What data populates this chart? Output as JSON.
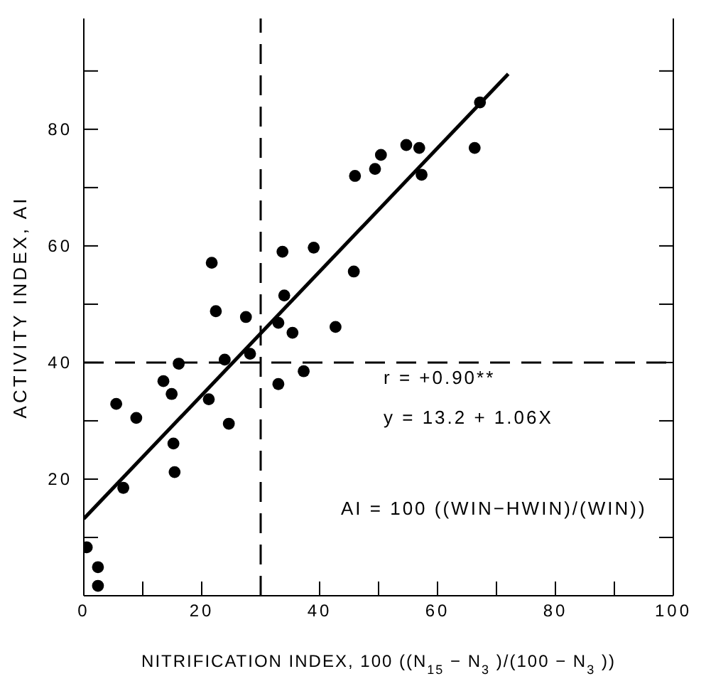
{
  "chart_data": {
    "type": "scatter",
    "xlabel": "NITRIFICATION INDEX, 100 ((N$_{15}$ − N$_{3}$)/(100 − N$_{3}$))",
    "ylabel": "ACTIVITY INDEX, AI",
    "xlim": [
      0,
      100
    ],
    "ylim": [
      0,
      99
    ],
    "xticks": [
      0,
      {
        "value": 10,
        "label": null
      },
      20,
      {
        "value": 30,
        "label": null
      },
      40,
      {
        "value": 50,
        "label": null
      },
      60,
      {
        "value": 70,
        "label": null
      },
      80,
      {
        "value": 90,
        "label": null
      },
      100
    ],
    "yticks": [
      {
        "value": 10,
        "label": null
      },
      20,
      {
        "value": 30,
        "label": null
      },
      40,
      {
        "value": 50,
        "label": null
      },
      60,
      {
        "value": 70,
        "label": null
      },
      80,
      {
        "value": 90,
        "label": null
      }
    ],
    "marker": "circle",
    "series": [
      {
        "color": "#000000",
        "x": [
          21.7,
          33.7,
          39,
          46,
          49.4,
          50.4,
          45.8,
          22.4,
          27.5,
          34,
          33,
          35.4,
          42.7,
          54.7,
          56.9,
          57.3,
          66.3,
          67.2,
          16.1,
          23.9,
          28.2,
          13.5,
          14.9,
          21.2,
          33,
          37.3,
          5.5,
          8.9,
          24.6,
          15.2,
          15.4,
          6.7,
          0.5,
          2.4,
          2.4
        ],
        "values": [
          57.1,
          59,
          59.7,
          72,
          73.2,
          75.6,
          55.6,
          48.8,
          47.8,
          51.5,
          46.8,
          45.1,
          46.1,
          77.3,
          76.8,
          72.2,
          76.8,
          84.6,
          39.8,
          40.5,
          41.5,
          36.8,
          34.6,
          33.7,
          36.3,
          38.5,
          32.9,
          30.5,
          29.5,
          26.1,
          21.2,
          18.5,
          8.3,
          4.9,
          1.7
        ]
      },
      {
        "type": "line",
        "color": "#000000",
        "x": [
          0,
          72
        ],
        "values": [
          13.2,
          89.5
        ],
        "marker": "none",
        "line_style": "solid"
      }
    ],
    "ref_lines": [
      {
        "axis": "x",
        "value": 30,
        "color": "#000000",
        "line_style": "dashed"
      },
      {
        "axis": "y",
        "value": 40,
        "color": "#000000",
        "line_style": "dashed"
      }
    ],
    "annotations": [
      "r = +0.90**",
      "y = 13.2 + 1.06X",
      "AI = 100 ((WIN−HWIN)/(WIN))"
    ]
  }
}
